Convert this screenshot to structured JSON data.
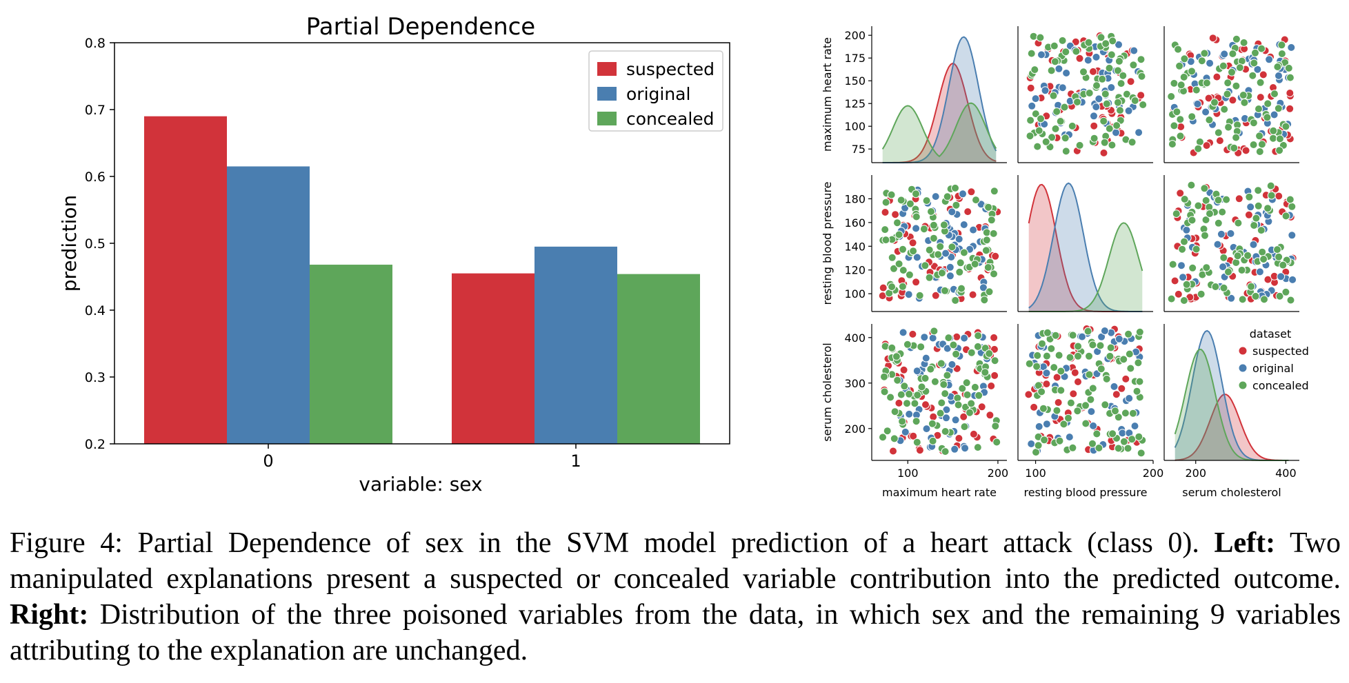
{
  "colors": {
    "suspected": "#d1333a",
    "original": "#4a7eb0",
    "concealed": "#5ea65a"
  },
  "chart_data": [
    {
      "type": "bar",
      "title": "Partial Dependence",
      "xlabel": "variable: sex",
      "ylabel": "prediction",
      "categories": [
        "0",
        "1"
      ],
      "ylim": [
        0.2,
        0.8
      ],
      "yticks": [
        "0.2",
        "0.3",
        "0.4",
        "0.5",
        "0.6",
        "0.7",
        "0.8"
      ],
      "legend_position": "top-right",
      "series": [
        {
          "name": "suspected",
          "values": [
            0.69,
            0.455
          ]
        },
        {
          "name": "original",
          "values": [
            0.615,
            0.495
          ]
        },
        {
          "name": "concealed",
          "values": [
            0.468,
            0.454
          ]
        }
      ]
    },
    {
      "type": "scatter",
      "subtype": "pairplot",
      "variables": [
        "maximum heart rate",
        "resting blood pressure",
        "serum cholesterol"
      ],
      "legend_title": "dataset",
      "legend_position": "lower-right",
      "hue": [
        "suspected",
        "original",
        "concealed"
      ],
      "ranges": {
        "maximum heart rate": [
          60,
          210
        ],
        "resting blood pressure": [
          85,
          200
        ],
        "serum cholesterol": [
          130,
          430
        ]
      },
      "row_ticks": [
        [
          "75",
          "100",
          "125",
          "150",
          "175",
          "200"
        ],
        [
          "100",
          "120",
          "140",
          "160",
          "180"
        ],
        [
          "200",
          "300",
          "400"
        ]
      ],
      "col_ticks": [
        [
          "100",
          "200"
        ],
        [
          "100",
          "200"
        ],
        [
          "200",
          "400"
        ]
      ],
      "point_ranges": {
        "suspected": {
          "maximum heart rate": [
            70,
            200
          ],
          "resting blood pressure": [
            94,
            190
          ],
          "serum cholesterol": [
            150,
            420
          ]
        },
        "original": {
          "maximum heart rate": [
            90,
            190
          ],
          "resting blood pressure": [
            96,
            190
          ],
          "serum cholesterol": [
            150,
            415
          ]
        },
        "concealed": {
          "maximum heart rate": [
            72,
            200
          ],
          "resting blood pressure": [
            94,
            192
          ],
          "serum cholesterol": [
            145,
            415
          ]
        }
      },
      "kde_peaks": {
        "maximum heart rate": {
          "suspected": [
            150,
            0.75
          ],
          "original": [
            162,
            0.95
          ],
          "concealed": [
            [
              100,
              0.43
            ],
            [
              170,
              0.45
            ]
          ]
        },
        "resting blood pressure": {
          "suspected": [
            105,
            0.96
          ],
          "original": [
            128,
            0.97
          ],
          "concealed": [
            175,
            0.67
          ]
        },
        "serum cholesterol": {
          "suspected": [
            265,
            0.5
          ],
          "original": [
            225,
            0.98
          ],
          "concealed": [
            210,
            0.84
          ]
        }
      }
    }
  ],
  "caption": {
    "prefix": "Figure 4: Partial Dependence of sex in the SVM model prediction of a heart attack (class 0). ",
    "left_label": "Left:",
    "left_text": " Two manipulated explanations present a suspected or concealed variable contribution into the predicted outcome. ",
    "right_label": "Right:",
    "right_text": " Distribution of the three poisoned variables from the data, in which sex and the remaining 9 variables attributing to the explanation are unchanged."
  }
}
